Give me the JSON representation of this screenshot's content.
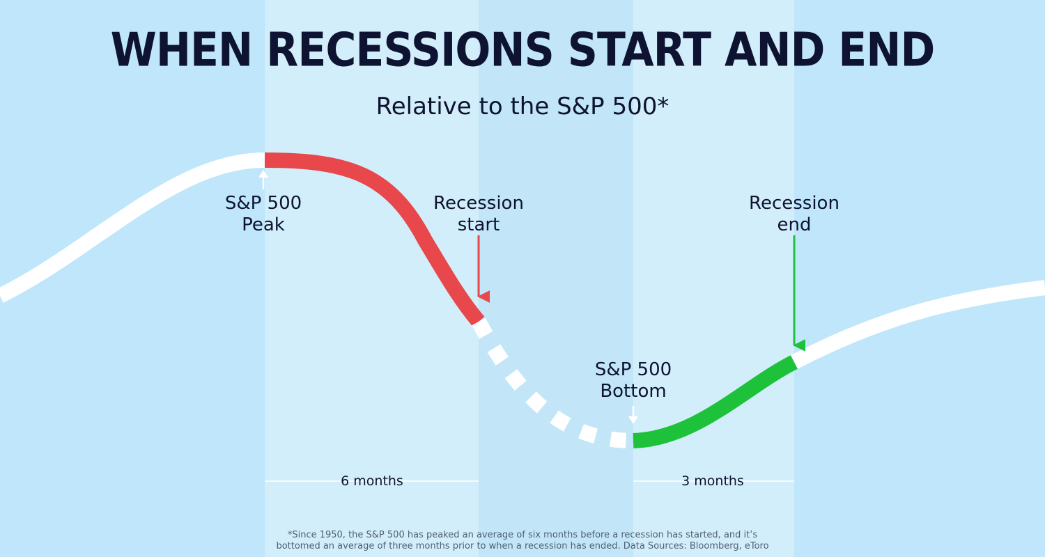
{
  "title": "WHEN RECESSIONS START AND END",
  "subtitle": "Relative to the S&P 500*",
  "labels": {
    "peak": [
      "S&P 500",
      "Peak"
    ],
    "recession_start": [
      "Recession",
      "start"
    ],
    "bottom": [
      "S&P 500",
      "Bottom"
    ],
    "recession_end": [
      "Recession",
      "end"
    ]
  },
  "periods": {
    "peak_to_start": "6 months",
    "bottom_to_end": "3 months"
  },
  "footnote": {
    "line1": "*Since 1950, the S&P 500 has peaked an average of six months before a recession has started, and it’s",
    "line2": "bottomed an average of three months prior to when a recession has ended. Data Sources: Bloomberg, eToro"
  },
  "colors": {
    "background": "#bfe6fa",
    "band_light": "#d3eefb",
    "band_mid": "#c2e6f8",
    "decline": "#e8484b",
    "recovery": "#1ec23a",
    "curve": "#ffffff",
    "text": "#0d1330"
  }
}
